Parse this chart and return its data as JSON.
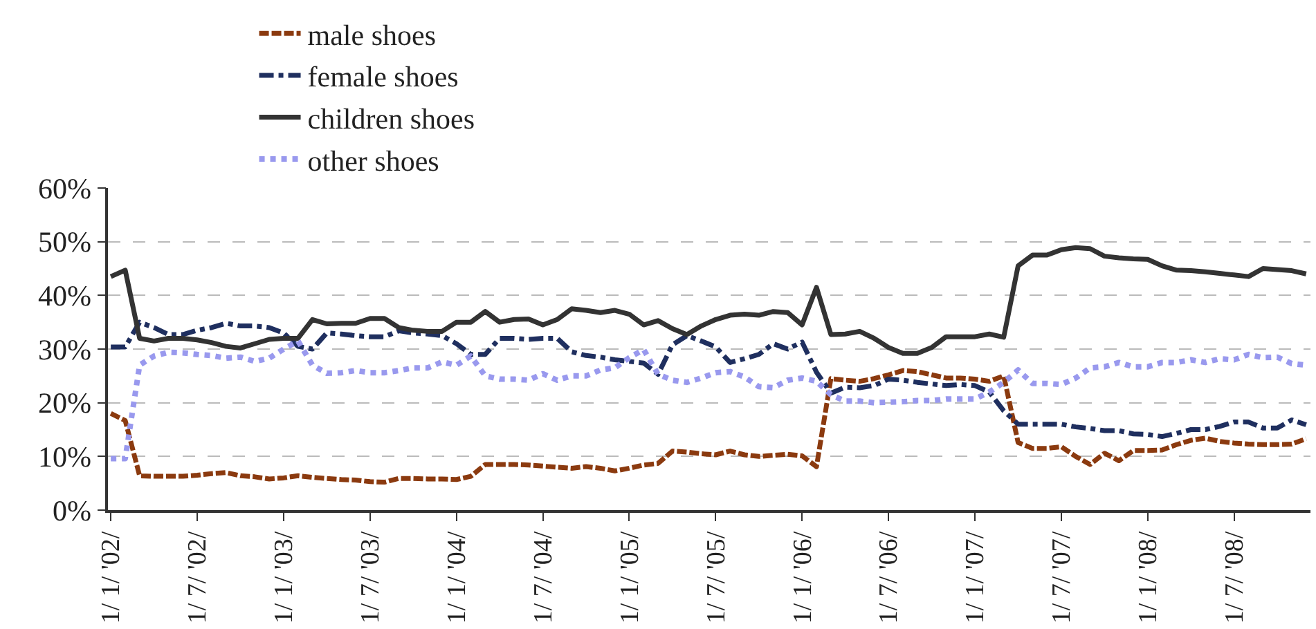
{
  "chart_data": {
    "type": "line",
    "categories": [
      "1/ 1/ '02/",
      null,
      null,
      null,
      null,
      null,
      "1/ 7/ '02/",
      null,
      null,
      null,
      null,
      null,
      "1/ 1/ '03/",
      null,
      null,
      null,
      null,
      null,
      "1/ 7/ '03/",
      null,
      null,
      null,
      null,
      null,
      "1/ 1/ '04/",
      null,
      null,
      null,
      null,
      null,
      "1/ 7/ '04/",
      null,
      null,
      null,
      null,
      null,
      "1/ 1/ '05/",
      null,
      null,
      null,
      null,
      null,
      "1/ 7/ '05/",
      null,
      null,
      null,
      null,
      null,
      "1/ 1/ '06/",
      null,
      null,
      null,
      null,
      null,
      "1/ 7/ '06/",
      null,
      null,
      null,
      null,
      null,
      "1/ 1/ '07/",
      null,
      null,
      null,
      null,
      null,
      "1/ 7/ '07/",
      null,
      null,
      null,
      null,
      null,
      "1/ 1/ '08/",
      null,
      null,
      null,
      null,
      null,
      "1/ 7/ '08/",
      null,
      null,
      null,
      null,
      null
    ],
    "series": [
      {
        "name": "male shoes",
        "color": "#8b3a0f",
        "line_style": "dashed",
        "values": [
          18,
          16.7,
          6.4,
          6.3,
          6.3,
          6.3,
          6.5,
          6.8,
          7,
          6.4,
          6.2,
          5.8,
          6,
          6.4,
          6.1,
          5.9,
          5.7,
          5.6,
          5.3,
          5.2,
          5.9,
          5.9,
          5.8,
          5.8,
          5.7,
          6.3,
          8.5,
          8.5,
          8.5,
          8.4,
          8.2,
          8,
          7.8,
          8.1,
          7.8,
          7.3,
          7.8,
          8.4,
          8.7,
          11,
          10.8,
          10.5,
          10.3,
          11,
          10.3,
          10,
          10.2,
          10.4,
          10.1,
          8.1,
          24.5,
          24.2,
          24,
          24.5,
          25.2,
          26,
          25.8,
          25.2,
          24.6,
          24.6,
          24.4,
          24,
          25,
          12.6,
          11.5,
          11.5,
          11.8,
          10,
          8.5,
          10.6,
          9.2,
          11.1,
          11.1,
          11.2,
          12.2,
          13,
          13.4,
          12.8,
          12.5,
          12.3,
          12.2,
          12.2,
          12.3,
          13.3
        ]
      },
      {
        "name": "female shoes",
        "color": "#1f2f5f",
        "line_style": "dashdot",
        "values": [
          30.4,
          30.4,
          35,
          34,
          32.7,
          32.7,
          33.5,
          34,
          34.8,
          34.3,
          34.3,
          34,
          33,
          30.5,
          30,
          33,
          32.8,
          32.5,
          32.3,
          32.3,
          33.4,
          33,
          32.8,
          32.5,
          31,
          29,
          29,
          32,
          32,
          31.8,
          32,
          32,
          29.5,
          28.8,
          28.5,
          28,
          27.7,
          27.4,
          25.3,
          30.8,
          32.5,
          31.5,
          30.4,
          27.5,
          28.2,
          29,
          31,
          30,
          31.3,
          25.7,
          21.8,
          22.9,
          22.8,
          23.2,
          24.4,
          24.2,
          23.8,
          23.5,
          23.2,
          23.4,
          23.2,
          22,
          18.5,
          16,
          16,
          16,
          16,
          15.5,
          15.2,
          14.8,
          14.8,
          14.2,
          14.1,
          13.7,
          14.3,
          15,
          15,
          15.6,
          16.4,
          16.4,
          15.3,
          15.3,
          16.8,
          15.9
        ]
      },
      {
        "name": "children shoes",
        "color": "#333333",
        "line_style": "solid",
        "values": [
          43.5,
          44.7,
          32,
          31.5,
          32,
          32,
          31.7,
          31.2,
          30.5,
          30.2,
          31,
          31.8,
          32,
          32,
          35.5,
          34.7,
          34.8,
          34.8,
          35.7,
          35.7,
          34,
          33.5,
          33.3,
          33.3,
          35,
          35,
          37,
          35,
          35.5,
          35.6,
          34.5,
          35.5,
          37.5,
          37.2,
          36.8,
          37.2,
          36.5,
          34.5,
          35.3,
          33.8,
          32.7,
          34.3,
          35.5,
          36.3,
          36.5,
          36.3,
          37,
          36.8,
          34.5,
          41.5,
          32.7,
          32.8,
          33.3,
          32,
          30.3,
          29.2,
          29.2,
          30.3,
          32.3,
          32.3,
          32.3,
          32.8,
          32.2,
          45.5,
          47.5,
          47.5,
          48.5,
          48.9,
          48.7,
          47.3,
          47,
          46.8,
          46.7,
          45.5,
          44.7,
          44.6,
          44.4,
          44.1,
          43.8,
          43.5,
          45,
          44.8,
          44.6,
          44
        ]
      },
      {
        "name": "other shoes",
        "color": "#9999ee",
        "line_style": "dotted",
        "values": [
          9.6,
          9.6,
          27,
          28.7,
          29.4,
          29.3,
          29,
          28.8,
          28.3,
          28.5,
          27.7,
          28.3,
          30,
          31.5,
          27,
          25.5,
          25.6,
          26,
          25.6,
          25.6,
          26,
          26.5,
          26.5,
          27.6,
          27,
          28.7,
          25,
          24.4,
          24.4,
          24.2,
          25.4,
          24.2,
          25,
          25,
          26.1,
          26.5,
          28.4,
          29.9,
          25.3,
          24.2,
          23.8,
          24.6,
          25.6,
          25.8,
          24.8,
          23,
          22.8,
          24.2,
          24.6,
          24,
          21.5,
          20.3,
          20.3,
          20,
          20.1,
          20.2,
          20.4,
          20.4,
          20.7,
          20.7,
          20.7,
          22,
          23.8,
          26.1,
          23.6,
          23.6,
          23.4,
          24.6,
          26.5,
          26.7,
          27.5,
          26.7,
          26.7,
          27.5,
          27.5,
          28,
          27.5,
          28.2,
          28,
          29,
          28.4,
          28.5,
          27.3,
          27
        ]
      }
    ],
    "ylim": [
      0,
      60
    ],
    "yticks": [
      {
        "value": 0,
        "label": "0%"
      },
      {
        "value": 10,
        "label": "10%"
      },
      {
        "value": 20,
        "label": "20%"
      },
      {
        "value": 30,
        "label": "30%"
      },
      {
        "value": 40,
        "label": "40%"
      },
      {
        "value": 50,
        "label": "50%"
      },
      {
        "value": 60,
        "label": "60%"
      }
    ],
    "grid": "y",
    "legend": "top",
    "marker": "none"
  }
}
